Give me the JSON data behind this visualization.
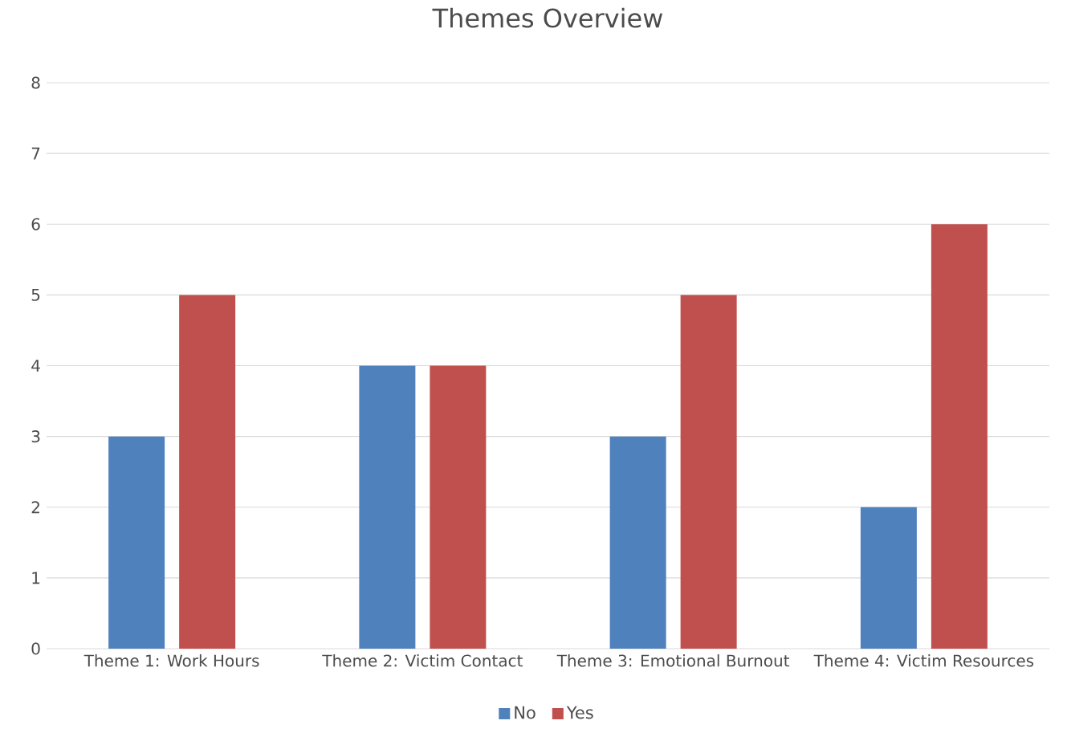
{
  "chart_data": {
    "type": "bar",
    "title": "Themes Overview",
    "categories": [
      "Theme 1: Work Hours",
      "Theme 2: Victim Contact",
      "Theme 3: Emotional Burnout",
      "Theme 4: Victim Resources"
    ],
    "series": [
      {
        "name": "No",
        "color": "#4f81bd",
        "values": [
          3,
          4,
          3,
          2
        ]
      },
      {
        "name": "Yes",
        "color": "#c0504d",
        "values": [
          5,
          4,
          5,
          6
        ]
      }
    ],
    "ylim": [
      0,
      8
    ],
    "yticks": [
      0,
      1,
      2,
      3,
      4,
      5,
      6,
      7,
      8
    ],
    "grid": "y",
    "legend": "bottom"
  }
}
